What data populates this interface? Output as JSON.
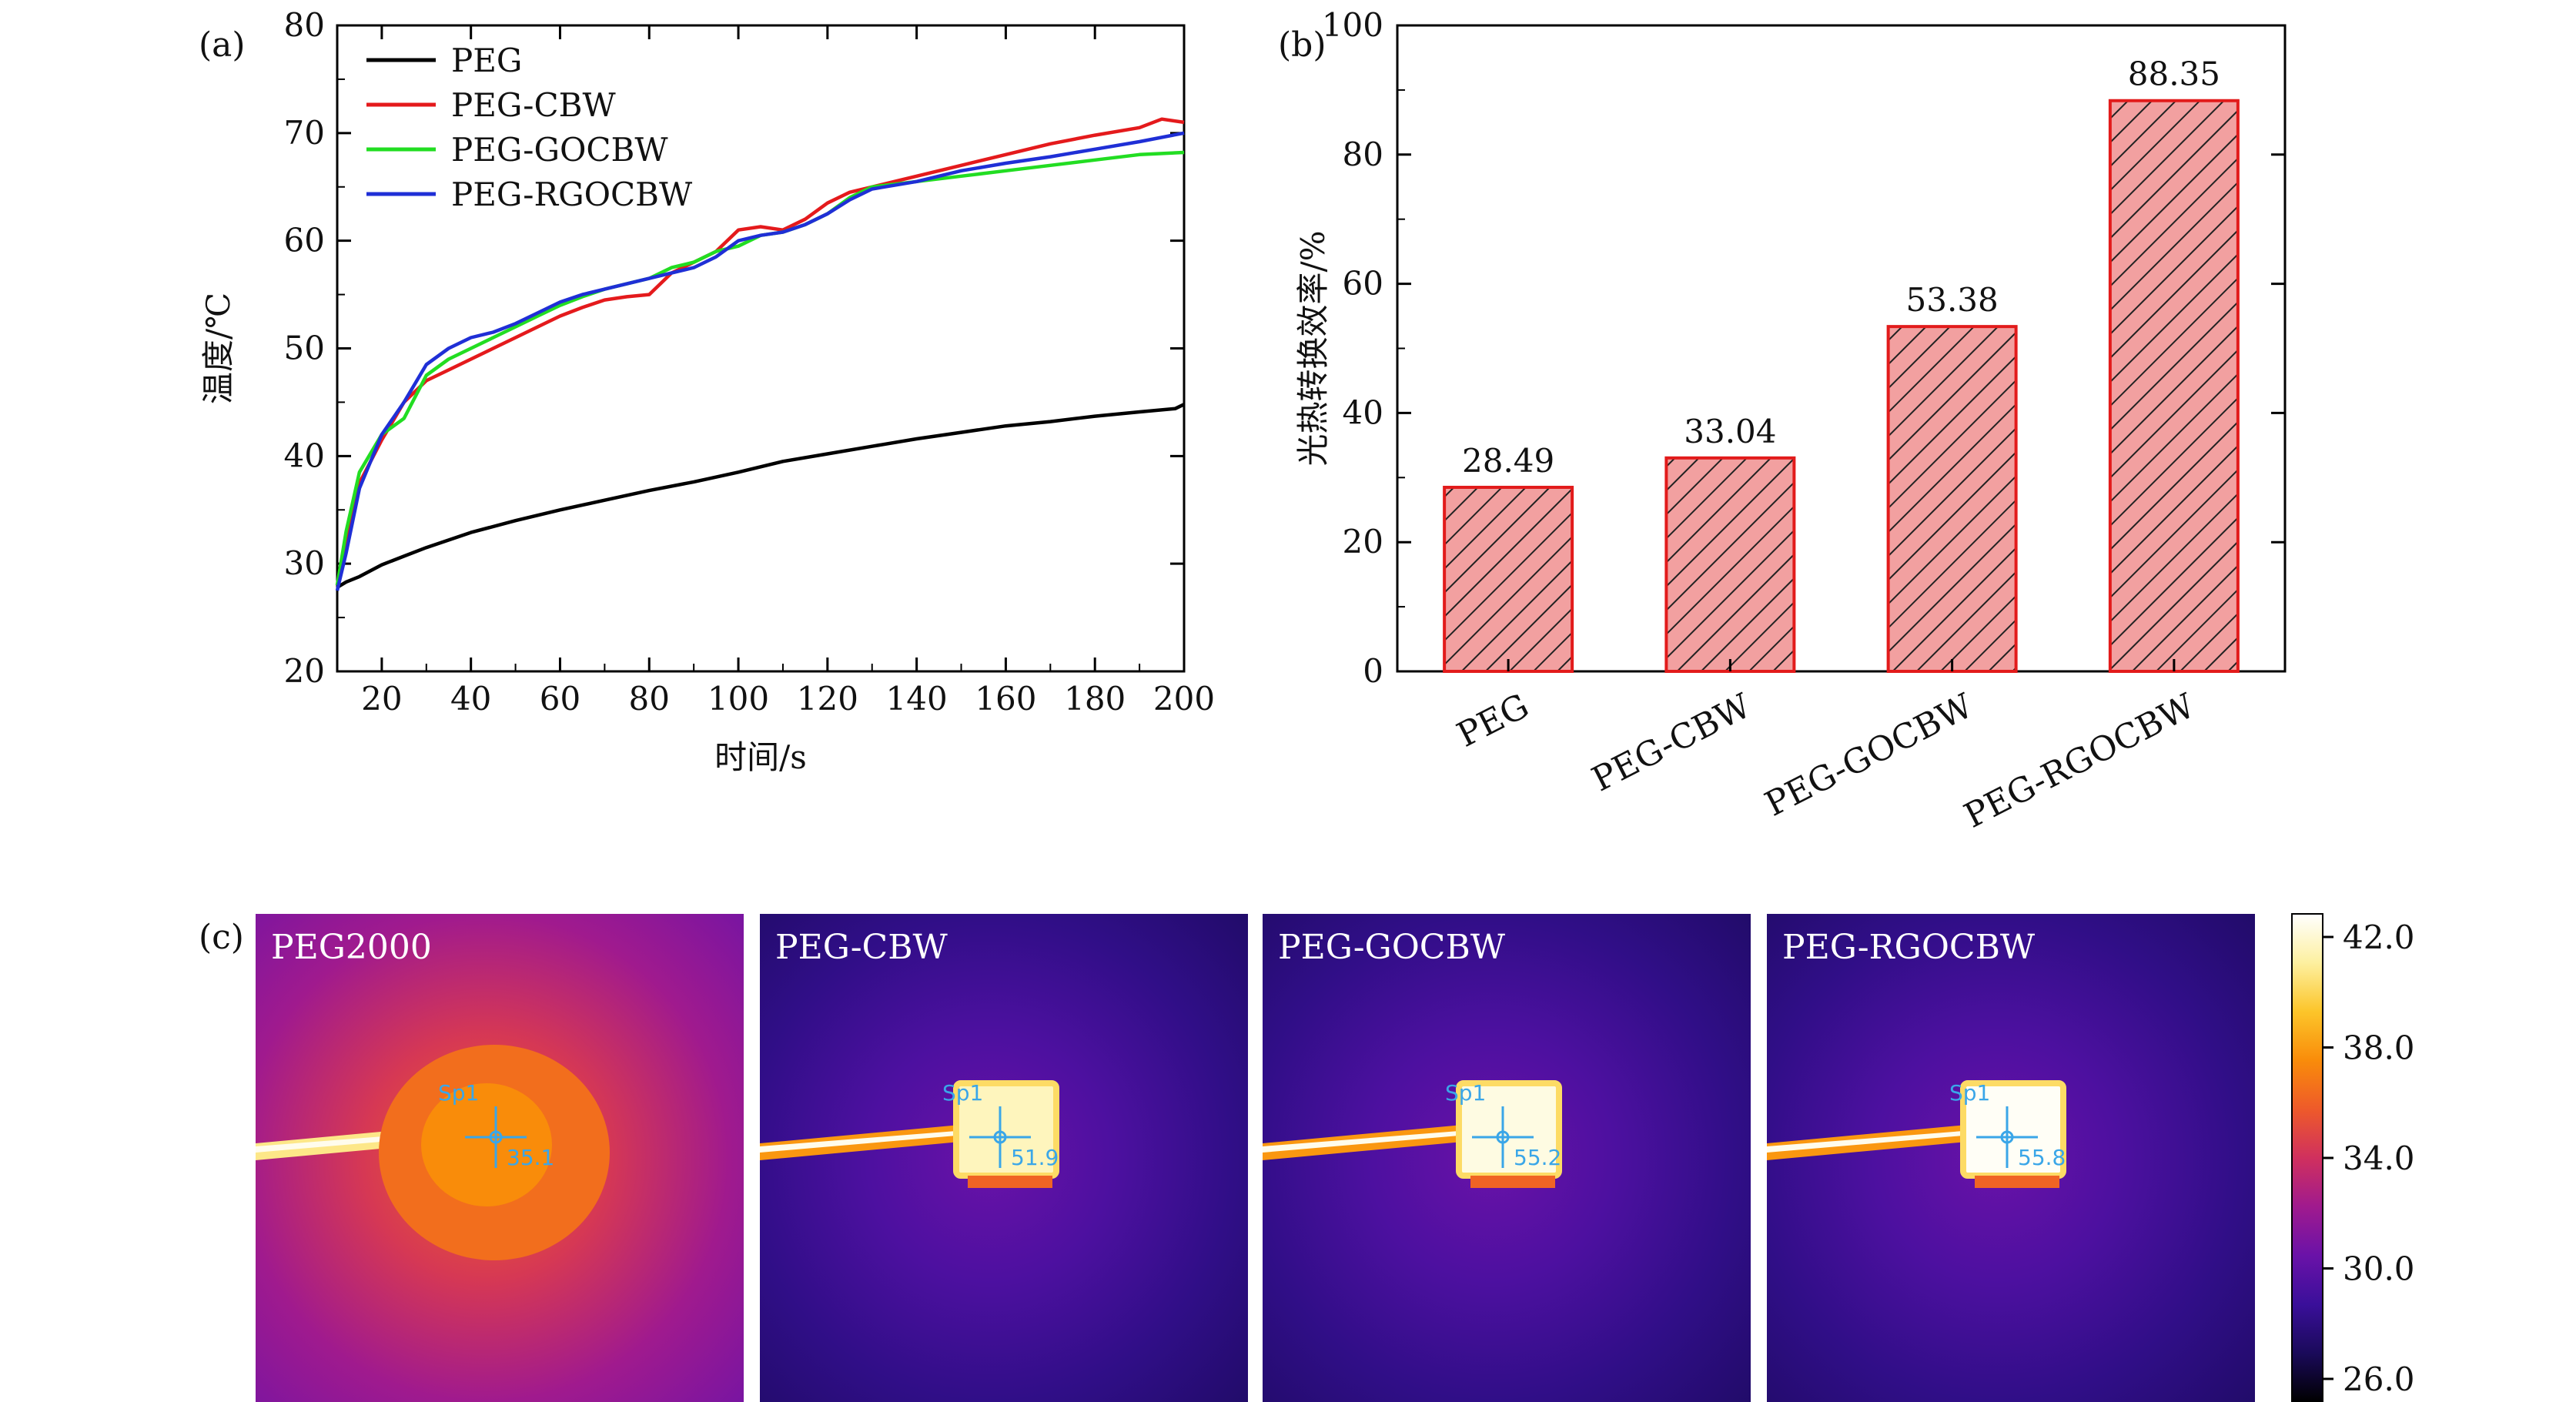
{
  "panel_a": {
    "tag": "(a)",
    "chart_data": {
      "type": "line",
      "xlabel": "时间/s",
      "ylabel": "温度/℃",
      "xlim": [
        10,
        200
      ],
      "ylim": [
        20,
        80
      ],
      "xticks": [
        20,
        40,
        60,
        80,
        100,
        120,
        140,
        160,
        180,
        200
      ],
      "yticks": [
        20,
        30,
        40,
        50,
        60,
        70,
        80
      ],
      "legend_position": "top-left",
      "grid": false,
      "series": [
        {
          "name": "PEG",
          "color": "#000000",
          "x": [
            10,
            12,
            15,
            20,
            25,
            30,
            40,
            50,
            60,
            70,
            80,
            90,
            100,
            110,
            120,
            130,
            140,
            150,
            160,
            170,
            180,
            190,
            198,
            200
          ],
          "y": [
            27.8,
            28.3,
            28.8,
            29.9,
            30.7,
            31.5,
            32.9,
            34.0,
            35.0,
            35.9,
            36.8,
            37.6,
            38.5,
            39.5,
            40.2,
            40.9,
            41.6,
            42.2,
            42.8,
            43.2,
            43.7,
            44.1,
            44.4,
            44.8
          ]
        },
        {
          "name": "PEG-CBW",
          "color": "#e41a1c",
          "x": [
            10,
            12,
            15,
            20,
            25,
            30,
            35,
            40,
            45,
            50,
            55,
            60,
            65,
            70,
            75,
            80,
            85,
            90,
            95,
            100,
            105,
            110,
            115,
            120,
            125,
            130,
            140,
            150,
            160,
            170,
            180,
            190,
            195,
            200
          ],
          "y": [
            28.0,
            32.0,
            37.5,
            41.5,
            45.0,
            47.0,
            48.0,
            49.0,
            50.0,
            51.0,
            52.0,
            53.0,
            53.8,
            54.5,
            54.8,
            55.0,
            57.0,
            58.0,
            59.0,
            61.0,
            61.3,
            61.0,
            62.0,
            63.5,
            64.5,
            65.0,
            66.0,
            67.0,
            68.0,
            69.0,
            69.8,
            70.5,
            71.3,
            71.0
          ]
        },
        {
          "name": "PEG-GOCBW",
          "color": "#22dd22",
          "x": [
            10,
            12,
            15,
            20,
            25,
            30,
            35,
            40,
            45,
            50,
            55,
            60,
            65,
            70,
            75,
            80,
            85,
            90,
            95,
            100,
            105,
            110,
            115,
            120,
            125,
            130,
            140,
            150,
            160,
            170,
            180,
            190,
            200
          ],
          "y": [
            28.0,
            33.0,
            38.5,
            42.0,
            43.5,
            47.5,
            49.0,
            50.0,
            51.0,
            52.0,
            53.0,
            54.0,
            54.8,
            55.5,
            56.0,
            56.5,
            57.5,
            58.0,
            59.0,
            59.5,
            60.5,
            60.8,
            61.5,
            62.5,
            64.0,
            65.0,
            65.5,
            66.0,
            66.5,
            67.0,
            67.5,
            68.0,
            68.2
          ]
        },
        {
          "name": "PEG-RGOCBW",
          "color": "#1f2fd6",
          "x": [
            10,
            12,
            15,
            20,
            25,
            30,
            35,
            40,
            45,
            50,
            55,
            60,
            65,
            70,
            75,
            80,
            85,
            90,
            95,
            100,
            105,
            110,
            115,
            120,
            125,
            130,
            140,
            150,
            160,
            170,
            180,
            190,
            200
          ],
          "y": [
            27.5,
            31.0,
            37.0,
            42.0,
            45.0,
            48.5,
            50.0,
            51.0,
            51.5,
            52.3,
            53.3,
            54.3,
            55.0,
            55.5,
            56.0,
            56.5,
            57.0,
            57.5,
            58.5,
            60.0,
            60.5,
            60.8,
            61.5,
            62.5,
            63.8,
            64.8,
            65.5,
            66.5,
            67.2,
            67.8,
            68.5,
            69.2,
            70.0
          ]
        }
      ]
    }
  },
  "panel_b": {
    "tag": "(b)",
    "chart_data": {
      "type": "bar",
      "ylabel": "光热转换效率/%",
      "ylim": [
        0,
        100
      ],
      "yticks": [
        0,
        20,
        40,
        60,
        80,
        100
      ],
      "categories": [
        "PEG",
        "PEG-CBW",
        "PEG-GOCBW",
        "PEG-RGOCBW"
      ],
      "values": [
        28.49,
        33.04,
        53.38,
        88.35
      ],
      "value_labels": [
        "28.49",
        "33.04",
        "53.38",
        "88.35"
      ],
      "bar_fill": "#f2a0a0",
      "bar_edge": "#e21b1b",
      "hatch": "diagonal"
    }
  },
  "panel_c": {
    "tag": "(c)",
    "spot_label": "Sp1",
    "images": [
      {
        "label": "PEG2000",
        "spot_value": "35.1",
        "brightness": 0.48,
        "sample": "disk"
      },
      {
        "label": "PEG-CBW",
        "spot_value": "51.9",
        "brightness": 0.93,
        "sample": "square"
      },
      {
        "label": "PEG-GOCBW",
        "spot_value": "55.2",
        "brightness": 0.97,
        "sample": "square"
      },
      {
        "label": "PEG-RGOCBW",
        "spot_value": "55.8",
        "brightness": 0.99,
        "sample": "square"
      }
    ],
    "colorbar_ticks": [
      "42.0",
      "38.0",
      "34.0",
      "30.0",
      "26.0"
    ],
    "colormap": [
      "#000000",
      "#1a0a5a",
      "#3a0f9a",
      "#6a12a8",
      "#a01a8e",
      "#d0305e",
      "#ee5a2a",
      "#f98c0a",
      "#fcc52a",
      "#fdf0a0",
      "#ffffff"
    ]
  }
}
